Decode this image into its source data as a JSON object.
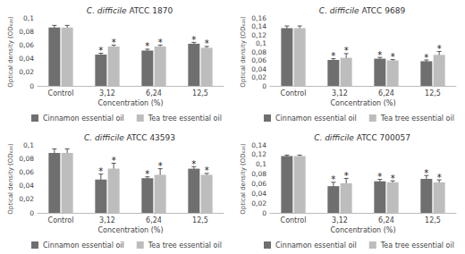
{
  "chart_data": [
    {
      "type": "bar",
      "title": "C. difficile ATCC 1870",
      "categories": [
        "Control",
        "3,12",
        "6,24",
        "12,5"
      ],
      "x_label": "Concentration (%)",
      "y_label": "Optical density (OD₆₂₀)",
      "ylim": [
        0,
        0.1
      ],
      "yticks": [
        0,
        {
          "value": 0.02,
          "label": "0,02"
        },
        {
          "value": 0.04,
          "label": "0,04"
        },
        {
          "value": 0.06,
          "label": "0,06"
        },
        {
          "value": 0.08,
          "label": "0,08"
        },
        {
          "value": 0.1,
          "label": "0,1"
        }
      ],
      "grid": false,
      "legend": "bottom",
      "series": [
        {
          "name": "Cinnamon essential oil",
          "color": "#6f6f6f",
          "values": [
            0.086,
            0.046,
            0.052,
            0.062
          ],
          "errors": [
            0.003,
            0.002,
            0.002,
            0.002
          ],
          "annotations": [
            null,
            "*",
            "*",
            "*"
          ]
        },
        {
          "name": "Tea tree essential oil",
          "color": "#bdbdbd",
          "values": [
            0.086,
            0.058,
            0.058,
            0.056
          ],
          "errors": [
            0.003,
            0.002,
            0.002,
            0.002
          ],
          "annotations": [
            null,
            "*",
            "*",
            "*"
          ]
        }
      ]
    },
    {
      "type": "bar",
      "title": "C. difficile ATCC 9689",
      "categories": [
        "Control",
        "3,12",
        "6,24",
        "12,5"
      ],
      "x_label": "Concentration (%)",
      "y_label": "Optical density (OD₆₂₀)",
      "ylim": [
        0,
        0.16
      ],
      "yticks": [
        0,
        {
          "value": 0.02,
          "label": "0,02"
        },
        {
          "value": 0.04,
          "label": "0,04"
        },
        {
          "value": 0.06,
          "label": "0,06"
        },
        {
          "value": 0.08,
          "label": "0,08"
        },
        {
          "value": 0.1,
          "label": "0,1"
        },
        {
          "value": 0.12,
          "label": "0,12"
        },
        {
          "value": 0.14,
          "label": "0,14"
        },
        {
          "value": 0.16,
          "label": "0,16"
        }
      ],
      "grid": false,
      "legend": "bottom",
      "series": [
        {
          "name": "Cinnamon essential oil",
          "color": "#6f6f6f",
          "values": [
            0.136,
            0.061,
            0.064,
            0.058
          ],
          "errors": [
            0.005,
            0.003,
            0.003,
            0.003
          ],
          "annotations": [
            null,
            "*",
            "*",
            "*"
          ]
        },
        {
          "name": "Tea tree essential oil",
          "color": "#bdbdbd",
          "values": [
            0.136,
            0.066,
            0.06,
            0.073
          ],
          "errors": [
            0.005,
            0.01,
            0.002,
            0.008
          ],
          "annotations": [
            null,
            "*",
            "*",
            "*"
          ]
        }
      ]
    },
    {
      "type": "bar",
      "title": "C. difficile ATCC 43593",
      "categories": [
        "Control",
        "3,12",
        "6,24",
        "12,5"
      ],
      "x_label": "Concentration (%)",
      "y_label": "Optical density (OD₆₂₀)",
      "ylim": [
        0,
        0.1
      ],
      "yticks": [
        0,
        {
          "value": 0.02,
          "label": "0,02"
        },
        {
          "value": 0.04,
          "label": "0,04"
        },
        {
          "value": 0.06,
          "label": "0,06"
        },
        {
          "value": 0.08,
          "label": "0,08"
        },
        {
          "value": 0.1,
          "label": "0,1"
        }
      ],
      "grid": false,
      "legend": "bottom",
      "series": [
        {
          "name": "Cinnamon essential oil",
          "color": "#6f6f6f",
          "values": [
            0.088,
            0.049,
            0.051,
            0.065
          ],
          "errors": [
            0.006,
            0.008,
            0.002,
            0.003
          ],
          "annotations": [
            null,
            "*",
            "*",
            "*"
          ]
        },
        {
          "name": "Tea tree essential oil",
          "color": "#bdbdbd",
          "values": [
            0.088,
            0.065,
            0.056,
            0.056
          ],
          "errors": [
            0.006,
            0.008,
            0.009,
            0.002
          ],
          "annotations": [
            null,
            "*",
            "*",
            "*"
          ]
        }
      ]
    },
    {
      "type": "bar",
      "title": "C. difficile ATCC 700057",
      "categories": [
        "Control",
        "3,12",
        "6,24",
        "12,5"
      ],
      "x_label": "Concentration (%)",
      "y_label": "Optical density (OD₆₂₀)",
      "ylim": [
        0,
        0.14
      ],
      "yticks": [
        0,
        {
          "value": 0.02,
          "label": "0,02"
        },
        {
          "value": 0.04,
          "label": "0,04"
        },
        {
          "value": 0.06,
          "label": "0,06"
        },
        {
          "value": 0.08,
          "label": "0,08"
        },
        {
          "value": 0.1,
          "label": "0,1"
        },
        {
          "value": 0.12,
          "label": "0,12"
        },
        {
          "value": 0.14,
          "label": "0,14"
        }
      ],
      "grid": false,
      "legend": "bottom",
      "series": [
        {
          "name": "Cinnamon essential oil",
          "color": "#6f6f6f",
          "values": [
            0.117,
            0.055,
            0.065,
            0.07
          ],
          "errors": [
            0.002,
            0.008,
            0.004,
            0.007
          ],
          "annotations": [
            null,
            "*",
            "*",
            "*"
          ]
        },
        {
          "name": "Tea tree essential oil",
          "color": "#bdbdbd",
          "values": [
            0.117,
            0.061,
            0.063,
            0.063
          ],
          "errors": [
            0.002,
            0.01,
            0.003,
            0.005
          ],
          "annotations": [
            null,
            "*",
            "*",
            "*"
          ]
        }
      ]
    }
  ]
}
